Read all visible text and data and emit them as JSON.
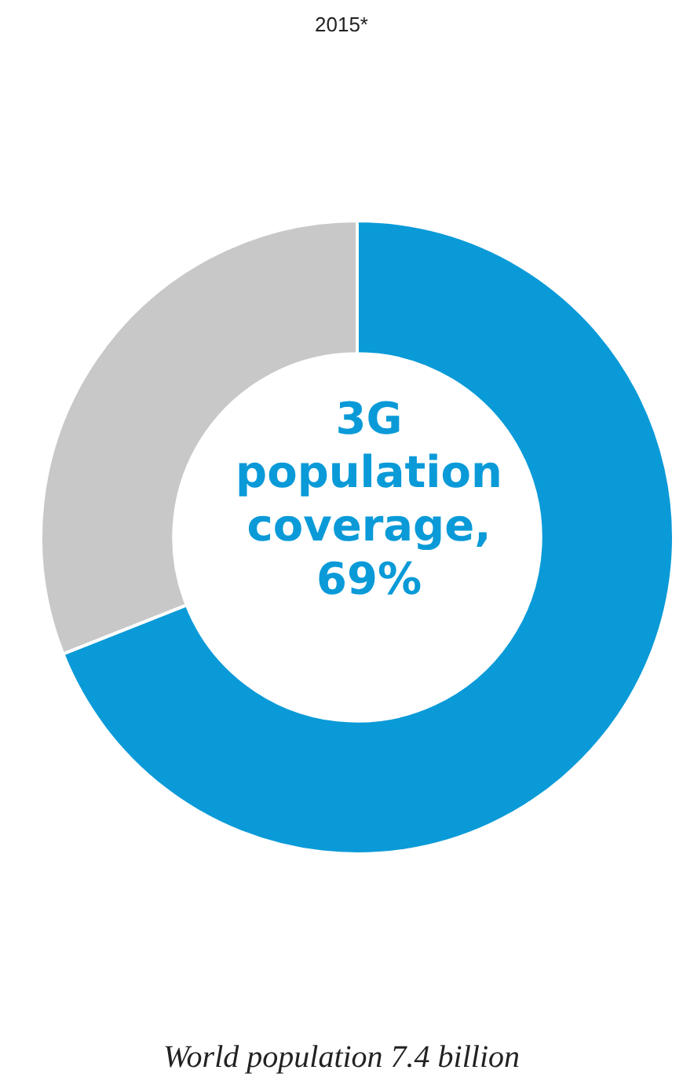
{
  "chart_data": {
    "type": "donut",
    "title": "2015*",
    "categories": [
      null,
      null
    ],
    "values": [
      69,
      31
    ],
    "colors": [
      "#0a9ad8",
      "#c8c8c8"
    ],
    "legend": false,
    "annotations": [
      "3G population coverage, 69%",
      "World population 7.4 billion"
    ]
  }
}
